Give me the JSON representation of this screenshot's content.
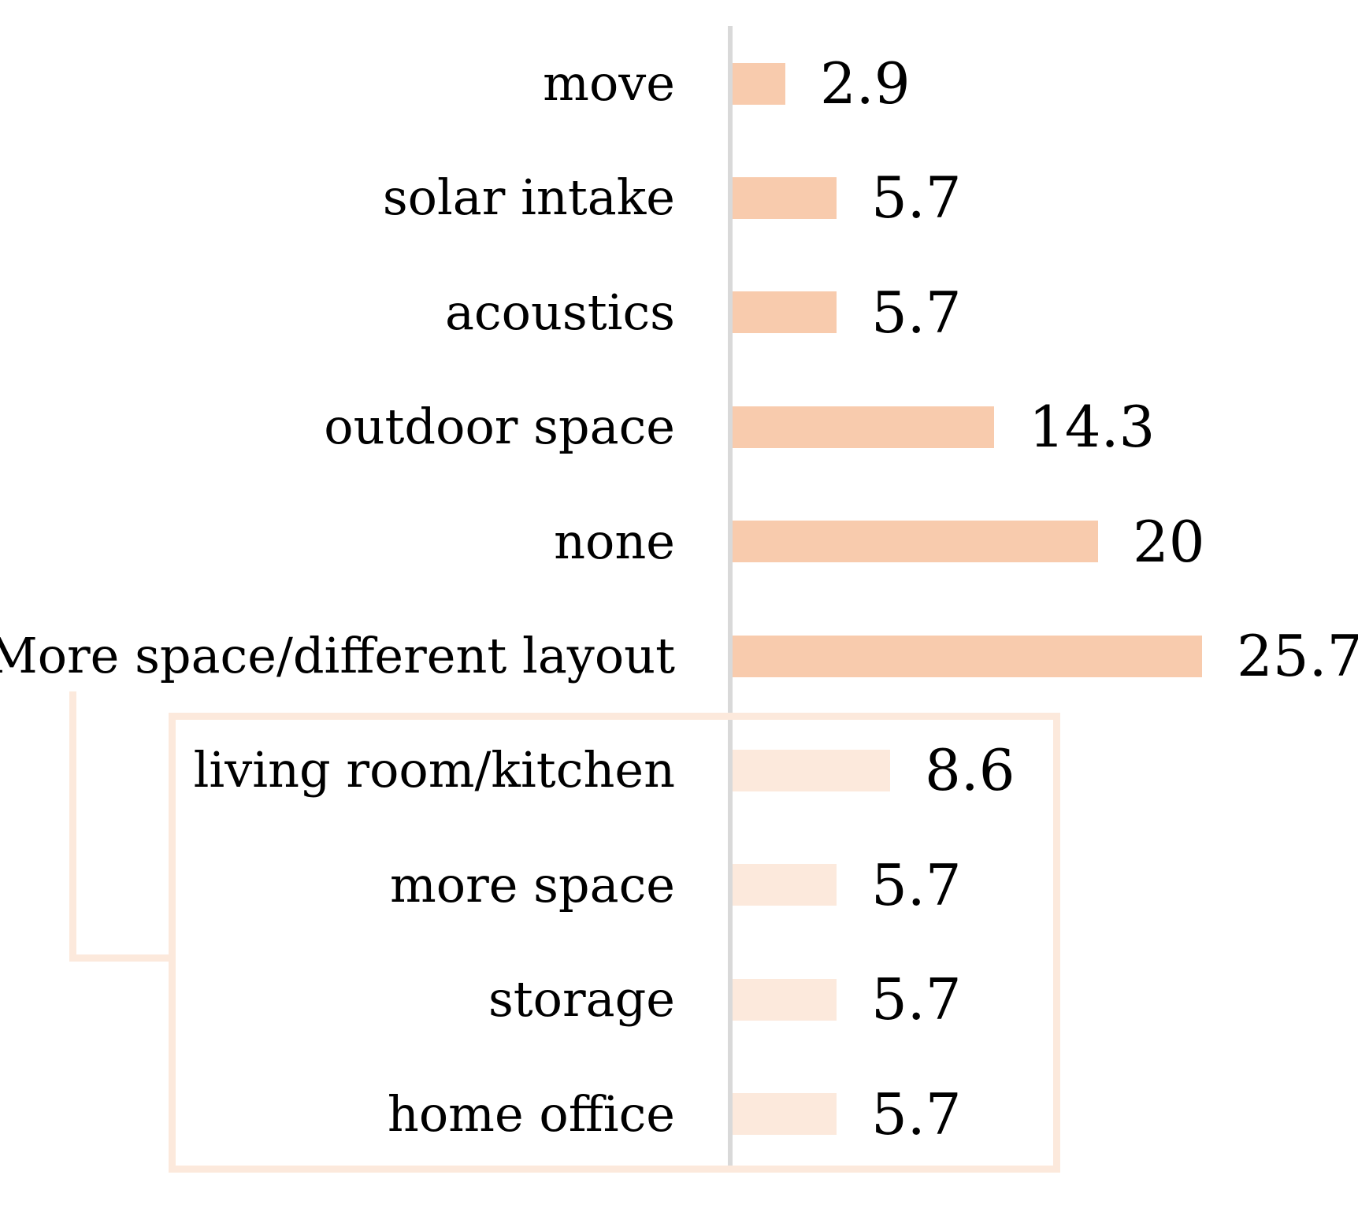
{
  "chart_data": {
    "type": "bar",
    "orientation": "horizontal",
    "title": "",
    "xlabel": "",
    "ylabel": "",
    "xlim": [
      0,
      34.2
    ],
    "gridlines": false,
    "legend": "none",
    "bars": [
      {
        "category": "move",
        "value": 2.9,
        "label": "2.9",
        "group": "main"
      },
      {
        "category": "solar intake",
        "value": 5.7,
        "label": "5.7",
        "group": "main"
      },
      {
        "category": "acoustics",
        "value": 5.7,
        "label": "5.7",
        "group": "main"
      },
      {
        "category": "outdoor space",
        "value": 14.3,
        "label": "14.3",
        "group": "main"
      },
      {
        "category": "none",
        "value": 20,
        "label": "20",
        "group": "main"
      },
      {
        "category": "More space/different layout",
        "value": 25.7,
        "label": "25.7",
        "group": "main"
      },
      {
        "category": "living room/kitchen",
        "value": 8.6,
        "label": "8.6",
        "group": "sub"
      },
      {
        "category": "more space",
        "value": 5.7,
        "label": "5.7",
        "group": "sub"
      },
      {
        "category": "storage",
        "value": 5.7,
        "label": "5.7",
        "group": "sub"
      },
      {
        "category": "home office",
        "value": 5.7,
        "label": "5.7",
        "group": "sub"
      }
    ],
    "subgroup": {
      "parent": "More space/different layout",
      "members": [
        "living room/kitchen",
        "more space",
        "storage",
        "home office"
      ],
      "has_outline_box": true,
      "has_connector_bracket": true
    },
    "colors": {
      "main_bar": "#F8CBAD",
      "sub_bar": "#FCE9DC",
      "box_border": "#FCE9DC",
      "connector": "#FCE9DC",
      "axis": "#D9D9D9",
      "text": "#000000",
      "background": "#FFFFFF"
    }
  }
}
